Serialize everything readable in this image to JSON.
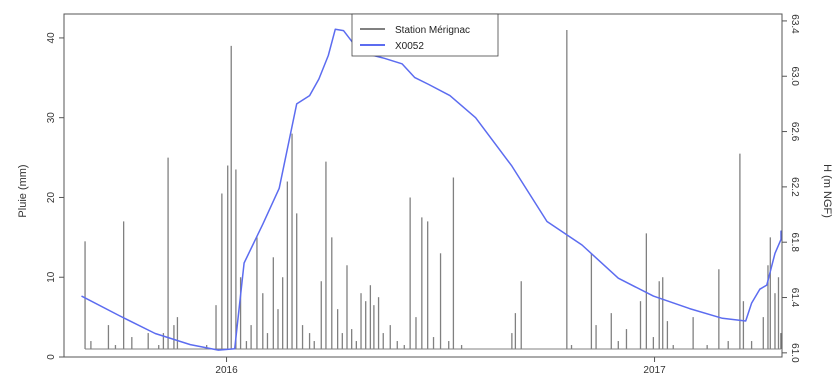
{
  "chart_data": {
    "type": "line",
    "title": "",
    "xlabel": "",
    "ylabel_left": "Pluie (mm)",
    "ylabel_right": "H (m NGF)",
    "x_tick_labels": [
      "2016",
      "2017"
    ],
    "x_range": [
      "2015-08-15",
      "2017-04-20"
    ],
    "y_left_ticks": [
      "0",
      "10",
      "20",
      "30",
      "40"
    ],
    "y_left_range": [
      0,
      43
    ],
    "y_right_ticks": [
      "61.0",
      "61.4",
      "61.8",
      "62.2",
      "62.6",
      "63.0",
      "63.4"
    ],
    "y_right_range": [
      60.97,
      63.45
    ],
    "grid": false,
    "legend_position": "top-center",
    "legend": [
      {
        "label": "Station Mérignac",
        "color": "#808080"
      },
      {
        "label": "X0052",
        "color": "#5c6cf0"
      }
    ],
    "series": [
      {
        "name": "Station Mérignac",
        "kind": "bars",
        "axis": "left",
        "color": "#808080",
        "points": [
          [
            "2015-09-02",
            14.5
          ],
          [
            "2015-09-07",
            2.0
          ],
          [
            "2015-09-14",
            1.0
          ],
          [
            "2015-09-22",
            4.0
          ],
          [
            "2015-09-28",
            1.5
          ],
          [
            "2015-10-05",
            17.0
          ],
          [
            "2015-10-12",
            2.5
          ],
          [
            "2015-10-18",
            1.0
          ],
          [
            "2015-10-26",
            3.0
          ],
          [
            "2015-11-04",
            1.5
          ],
          [
            "2015-11-08",
            3.0
          ],
          [
            "2015-11-12",
            25.0
          ],
          [
            "2015-11-17",
            4.0
          ],
          [
            "2015-11-20",
            5.0
          ],
          [
            "2015-12-03",
            1.0
          ],
          [
            "2015-12-15",
            1.5
          ],
          [
            "2015-12-23",
            6.5
          ],
          [
            "2015-12-28",
            20.5
          ],
          [
            "2016-01-02",
            24.0
          ],
          [
            "2016-01-05",
            39.0
          ],
          [
            "2016-01-09",
            23.5
          ],
          [
            "2016-01-13",
            10.0
          ],
          [
            "2016-01-18",
            2.0
          ],
          [
            "2016-01-22",
            4.0
          ],
          [
            "2016-01-27",
            15.0
          ],
          [
            "2016-02-01",
            8.0
          ],
          [
            "2016-02-05",
            3.0
          ],
          [
            "2016-02-10",
            12.5
          ],
          [
            "2016-02-14",
            6.0
          ],
          [
            "2016-02-18",
            10.0
          ],
          [
            "2016-02-22",
            22.0
          ],
          [
            "2016-02-26",
            28.0
          ],
          [
            "2016-03-01",
            18.0
          ],
          [
            "2016-03-06",
            4.0
          ],
          [
            "2016-03-12",
            3.0
          ],
          [
            "2016-03-16",
            2.0
          ],
          [
            "2016-03-22",
            9.5
          ],
          [
            "2016-03-26",
            24.5
          ],
          [
            "2016-03-31",
            15.0
          ],
          [
            "2016-04-05",
            6.0
          ],
          [
            "2016-04-09",
            3.0
          ],
          [
            "2016-04-13",
            11.5
          ],
          [
            "2016-04-17",
            3.5
          ],
          [
            "2016-04-21",
            2.0
          ],
          [
            "2016-04-25",
            8.0
          ],
          [
            "2016-04-29",
            7.0
          ],
          [
            "2016-05-03",
            9.0
          ],
          [
            "2016-05-06",
            6.5
          ],
          [
            "2016-05-10",
            7.5
          ],
          [
            "2016-05-14",
            3.0
          ],
          [
            "2016-05-20",
            4.0
          ],
          [
            "2016-05-26",
            2.0
          ],
          [
            "2016-06-01",
            1.5
          ],
          [
            "2016-06-06",
            20.0
          ],
          [
            "2016-06-11",
            5.0
          ],
          [
            "2016-06-16",
            17.5
          ],
          [
            "2016-06-21",
            17.0
          ],
          [
            "2016-06-26",
            2.5
          ],
          [
            "2016-07-02",
            13.0
          ],
          [
            "2016-07-09",
            2.0
          ],
          [
            "2016-07-13",
            22.5
          ],
          [
            "2016-07-20",
            1.5
          ],
          [
            "2016-07-28",
            1.0
          ],
          [
            "2016-08-06",
            1.0
          ],
          [
            "2016-08-16",
            1.0
          ],
          [
            "2016-09-01",
            3.0
          ],
          [
            "2016-09-04",
            5.5
          ],
          [
            "2016-09-09",
            9.5
          ],
          [
            "2016-10-01",
            1.0
          ],
          [
            "2016-10-18",
            41.0
          ],
          [
            "2016-10-22",
            1.5
          ],
          [
            "2016-11-08",
            13.0
          ],
          [
            "2016-11-12",
            4.0
          ],
          [
            "2016-11-25",
            5.5
          ],
          [
            "2016-12-01",
            2.0
          ],
          [
            "2016-12-08",
            3.5
          ],
          [
            "2016-12-20",
            7.0
          ],
          [
            "2016-12-25",
            15.5
          ],
          [
            "2016-12-31",
            2.5
          ],
          [
            "2017-01-05",
            9.5
          ],
          [
            "2017-01-08",
            10.0
          ],
          [
            "2017-01-12",
            4.5
          ],
          [
            "2017-01-17",
            1.5
          ],
          [
            "2017-02-03",
            5.0
          ],
          [
            "2017-02-15",
            1.5
          ],
          [
            "2017-02-25",
            11.0
          ],
          [
            "2017-03-05",
            2.0
          ],
          [
            "2017-03-15",
            25.5
          ],
          [
            "2017-03-18",
            7.0
          ],
          [
            "2017-03-25",
            2.0
          ],
          [
            "2017-04-04",
            5.0
          ],
          [
            "2017-04-08",
            11.5
          ],
          [
            "2017-04-10",
            15.0
          ],
          [
            "2017-04-14",
            8.0
          ],
          [
            "2017-04-17",
            10.0
          ],
          [
            "2017-04-19",
            3.0
          ]
        ]
      },
      {
        "name": "X0052",
        "kind": "line",
        "axis": "right",
        "color": "#5c6cf0",
        "points": [
          [
            "2015-08-30",
            61.41
          ],
          [
            "2015-10-01",
            61.27
          ],
          [
            "2015-11-01",
            61.14
          ],
          [
            "2015-12-01",
            61.06
          ],
          [
            "2015-12-25",
            61.02
          ],
          [
            "2016-01-08",
            61.03
          ],
          [
            "2016-01-16",
            61.65
          ],
          [
            "2016-02-01",
            61.93
          ],
          [
            "2016-02-15",
            62.19
          ],
          [
            "2016-03-01",
            62.8
          ],
          [
            "2016-03-12",
            62.86
          ],
          [
            "2016-03-20",
            62.98
          ],
          [
            "2016-03-28",
            63.15
          ],
          [
            "2016-04-03",
            63.34
          ],
          [
            "2016-04-10",
            63.33
          ],
          [
            "2016-04-20",
            63.22
          ],
          [
            "2016-05-01",
            63.16
          ],
          [
            "2016-05-15",
            63.13
          ],
          [
            "2016-05-30",
            63.09
          ],
          [
            "2016-06-10",
            62.99
          ],
          [
            "2016-06-22",
            62.94
          ],
          [
            "2016-07-10",
            62.86
          ],
          [
            "2016-08-01",
            62.7
          ],
          [
            "2016-09-01",
            62.35
          ],
          [
            "2016-10-01",
            61.95
          ],
          [
            "2016-10-31",
            61.78
          ],
          [
            "2016-12-01",
            61.54
          ],
          [
            "2016-12-31",
            61.41
          ],
          [
            "2017-01-31",
            61.32
          ],
          [
            "2017-02-28",
            61.25
          ],
          [
            "2017-03-20",
            61.23
          ],
          [
            "2017-03-25",
            61.36
          ],
          [
            "2017-04-01",
            61.46
          ],
          [
            "2017-04-07",
            61.49
          ],
          [
            "2017-04-14",
            61.72
          ],
          [
            "2017-04-20",
            61.82
          ],
          [
            "2017-04-26",
            61.88
          ],
          [
            "2017-05-05",
            61.88
          ],
          [
            "2017-05-15",
            61.86
          ]
        ]
      }
    ]
  }
}
